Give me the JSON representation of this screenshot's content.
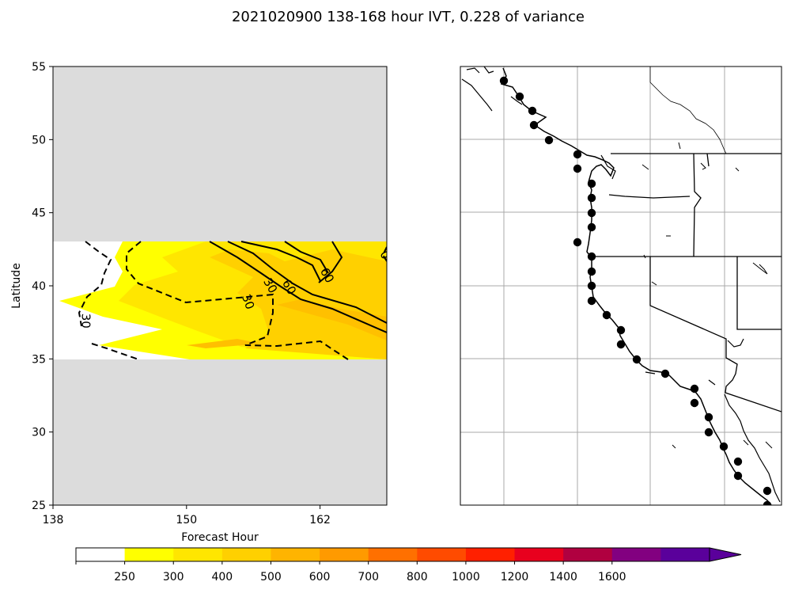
{
  "figure": {
    "title": "2021020900 138-168 hour IVT, 0.228 of variance"
  },
  "chart_data": [
    {
      "type": "heatmap",
      "panel": "left",
      "xlabel": "Forecast Hour",
      "ylabel": "Latitude",
      "xlim": [
        138,
        168
      ],
      "ylim": [
        25,
        55
      ],
      "xticks": [
        "138",
        "150",
        "162"
      ],
      "yticks": [
        "25",
        "30",
        "35",
        "40",
        "45",
        "50",
        "55"
      ],
      "data_lat_range": [
        35,
        43
      ],
      "no_data_color": "#dcdcdc",
      "contour_labels": [
        {
          "text": "30",
          "x": 140.9,
          "y": 37.6,
          "angle": 90
        },
        {
          "text": "30",
          "x": 155.5,
          "y": 38.9,
          "angle": 70
        },
        {
          "text": "30",
          "x": 157.5,
          "y": 40.0,
          "angle": 60
        },
        {
          "text": "60",
          "x": 159.2,
          "y": 39.9,
          "angle": 60
        },
        {
          "text": "60",
          "x": 162.6,
          "y": 40.7,
          "angle": 60
        },
        {
          "text": "0",
          "x": 167.8,
          "y": 42.1,
          "angle": 60
        }
      ]
    },
    {
      "type": "map",
      "panel": "right",
      "region": "US West Coast and Baja California",
      "points": "coastal IVT sample locations",
      "point_count": 37
    }
  ],
  "colorbar": {
    "ticks": [
      "250",
      "300",
      "400",
      "500",
      "600",
      "700",
      "800",
      "1000",
      "1200",
      "1400",
      "1600"
    ],
    "colors": [
      "#ffffff",
      "#ffff00",
      "#ffe600",
      "#ffd000",
      "#ffb400",
      "#ff9a00",
      "#ff7000",
      "#ff4b00",
      "#ff2000",
      "#e8001e",
      "#b00040",
      "#820080",
      "#5a009b"
    ],
    "extend": "max"
  }
}
